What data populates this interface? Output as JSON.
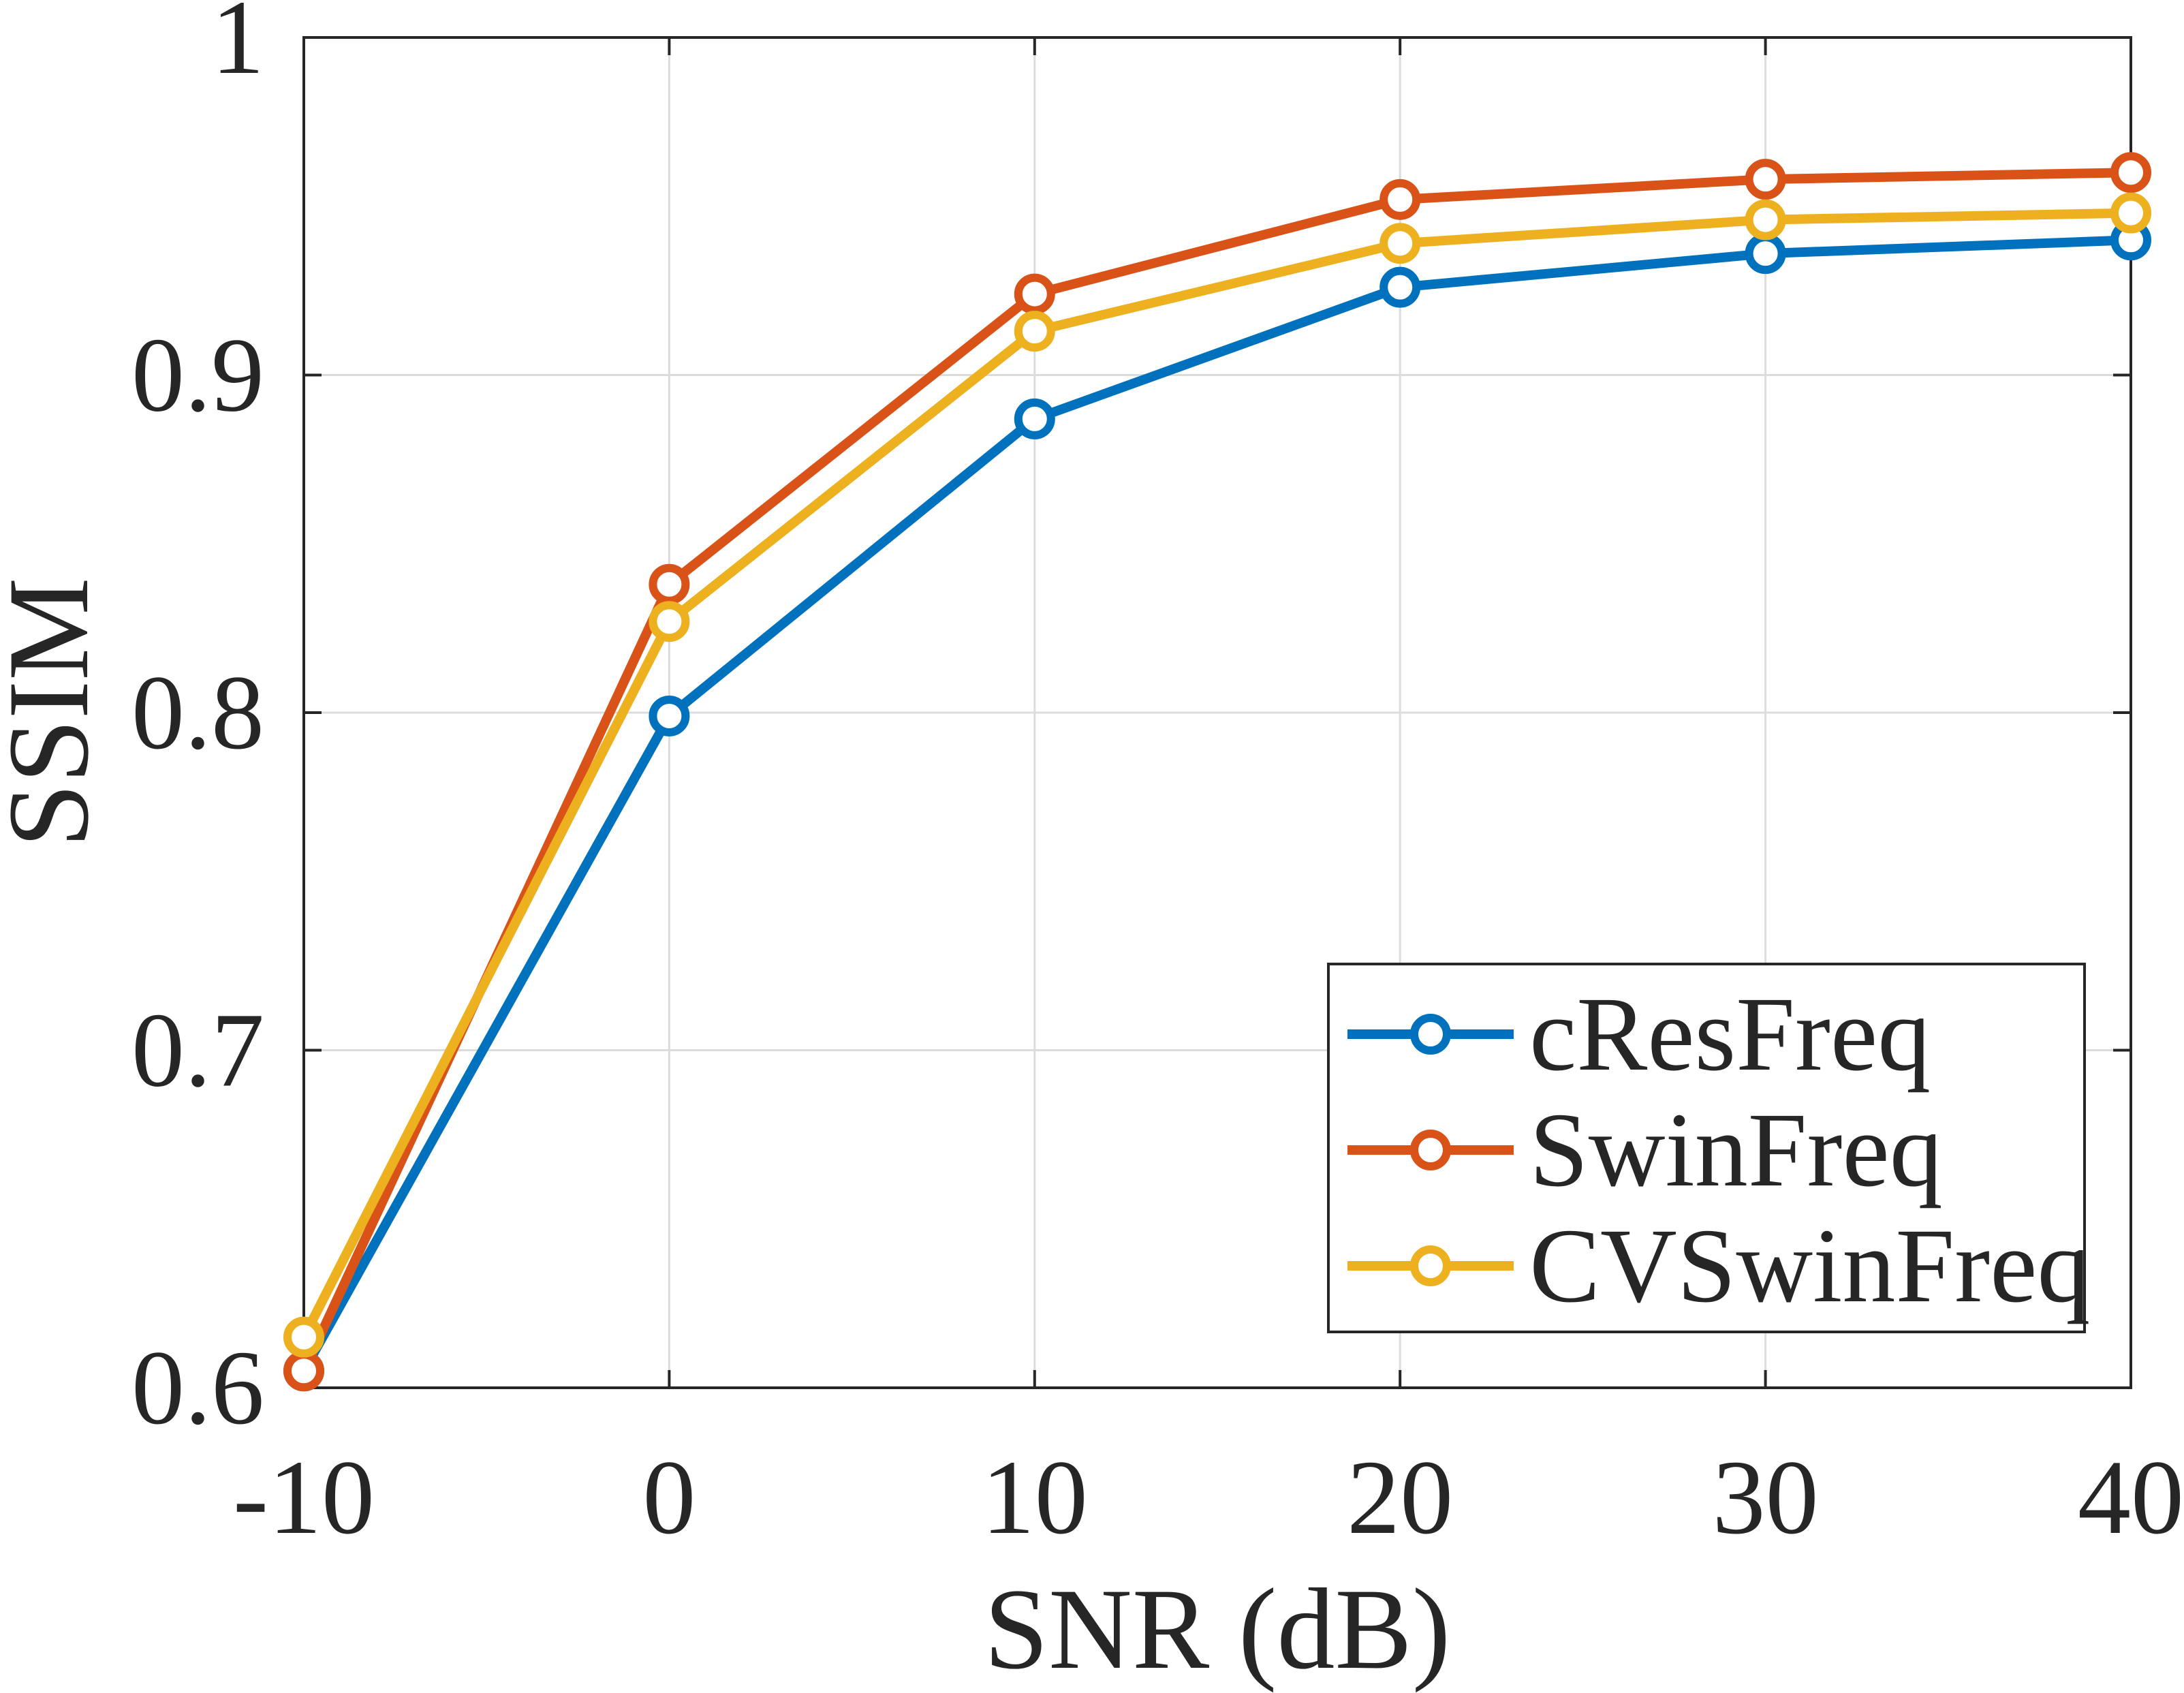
{
  "chart_data": {
    "type": "line",
    "xlabel": "SNR (dB)",
    "ylabel": "SSIM",
    "x": [
      -10,
      0,
      10,
      20,
      30,
      40
    ],
    "xlim": [
      -10,
      40
    ],
    "ylim": [
      0.6,
      1.0
    ],
    "xticks": [
      -10,
      0,
      10,
      20,
      30,
      40
    ],
    "xtick_labels": [
      "-10",
      "0",
      "10",
      "20",
      "30",
      "40"
    ],
    "yticks": [
      0.6,
      0.7,
      0.8,
      0.9,
      1.0
    ],
    "ytick_labels": [
      "0.6",
      "0.7",
      "0.8",
      "0.9",
      "1"
    ],
    "grid": true,
    "legend_position": "bottom-right",
    "series": [
      {
        "name": "cResFreq",
        "color": "#0072BD",
        "marker": "circle",
        "values": [
          0.605,
          0.799,
          0.887,
          0.926,
          0.936,
          0.94
        ]
      },
      {
        "name": "SwinFreq",
        "color": "#D95319",
        "marker": "circle",
        "values": [
          0.605,
          0.838,
          0.924,
          0.952,
          0.958,
          0.96
        ]
      },
      {
        "name": "CVSwinFreq",
        "color": "#EDB120",
        "marker": "circle",
        "values": [
          0.615,
          0.827,
          0.913,
          0.939,
          0.946,
          0.948
        ]
      }
    ]
  }
}
